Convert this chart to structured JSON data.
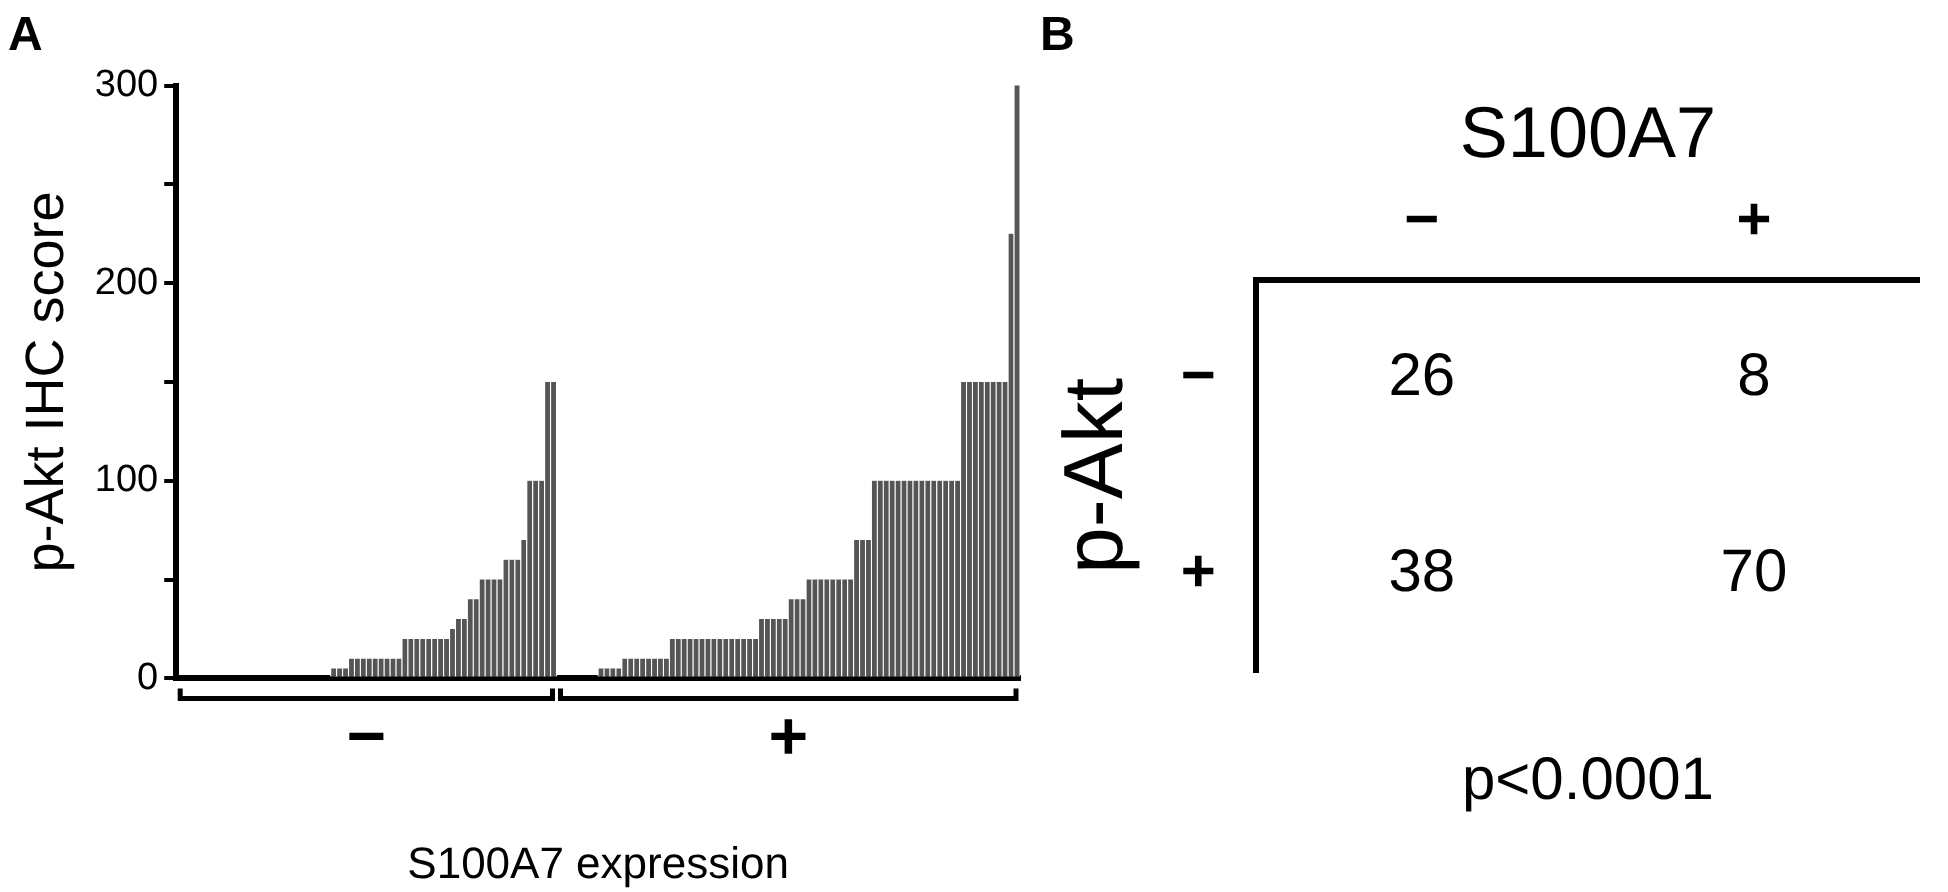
{
  "chart_data": [
    {
      "type": "bar",
      "title": "A",
      "ylabel": "p-Akt IHC score",
      "xlabel": "S100A7 expression",
      "stacked": true,
      "categories": [
        null,
        null,
        null,
        null,
        null,
        null,
        null,
        null,
        null,
        null,
        null,
        null,
        null,
        null,
        null,
        null,
        null,
        null,
        null,
        null,
        null,
        null,
        null,
        null,
        null,
        null,
        null,
        null,
        null,
        null,
        null,
        null,
        null,
        null,
        null,
        null,
        null,
        null,
        null,
        null,
        null,
        null,
        null,
        null,
        null,
        null,
        null,
        null,
        null,
        null,
        null,
        null,
        null,
        null,
        null,
        null,
        null,
        null,
        null,
        null,
        null,
        null,
        null,
        null,
        null,
        null,
        null,
        null,
        null,
        null,
        null,
        null,
        null,
        null,
        null,
        null,
        null,
        null,
        null,
        null,
        null,
        null,
        null,
        null,
        null,
        null,
        null,
        null,
        null,
        null,
        null,
        null,
        null,
        null,
        null,
        null,
        null,
        null,
        null,
        null,
        null,
        null,
        null,
        null,
        null,
        null,
        null,
        null,
        null,
        null,
        null,
        null,
        null,
        null,
        null,
        null,
        null,
        null,
        null,
        null,
        null,
        null,
        null,
        null,
        null,
        null,
        null,
        null,
        null,
        null,
        null,
        null,
        null,
        null,
        null,
        null,
        null,
        null,
        null,
        null,
        null,
        null
      ],
      "series": [
        {
          "name": "−",
          "color": "#555555",
          "values": [
            0,
            0,
            0,
            0,
            0,
            0,
            0,
            0,
            0,
            0,
            0,
            0,
            0,
            0,
            0,
            0,
            0,
            0,
            0,
            0,
            0,
            0,
            0,
            0,
            0,
            0,
            5,
            5,
            5,
            10,
            10,
            10,
            10,
            10,
            10,
            10,
            10,
            10,
            20,
            20,
            20,
            20,
            20,
            20,
            20,
            20,
            25,
            30,
            30,
            40,
            40,
            50,
            50,
            50,
            50,
            60,
            60,
            60,
            70,
            100,
            100,
            100,
            150,
            150,
            null,
            null,
            null,
            null,
            null,
            null,
            null,
            null,
            null,
            null,
            null,
            null,
            null,
            null,
            null,
            null,
            null,
            null,
            null,
            null,
            null,
            null,
            null,
            null,
            null,
            null,
            null,
            null,
            null,
            null,
            null,
            null,
            null,
            null,
            null,
            null,
            null,
            null,
            null,
            null,
            null,
            null,
            null,
            null,
            null,
            null,
            null,
            null,
            null,
            null,
            null,
            null,
            null,
            null,
            null,
            null,
            null,
            null,
            null,
            null,
            null,
            null,
            null,
            null,
            null,
            null,
            null,
            null,
            null,
            null,
            null,
            null,
            null,
            null,
            null,
            null,
            null,
            null
          ]
        },
        {
          "name": "+",
          "color": "#555555",
          "values": [
            null,
            null,
            null,
            null,
            null,
            null,
            null,
            null,
            null,
            null,
            null,
            null,
            null,
            null,
            null,
            null,
            null,
            null,
            null,
            null,
            null,
            null,
            null,
            null,
            null,
            null,
            null,
            null,
            null,
            null,
            null,
            null,
            null,
            null,
            null,
            null,
            null,
            null,
            null,
            null,
            null,
            null,
            null,
            null,
            null,
            null,
            null,
            null,
            null,
            null,
            null,
            null,
            null,
            null,
            null,
            null,
            null,
            null,
            null,
            null,
            null,
            null,
            null,
            null,
            0,
            0,
            0,
            0,
            0,
            0,
            0,
            5,
            5,
            5,
            5,
            10,
            10,
            10,
            10,
            10,
            10,
            10,
            10,
            20,
            20,
            20,
            20,
            20,
            20,
            20,
            20,
            20,
            20,
            20,
            20,
            20,
            20,
            20,
            30,
            30,
            30,
            30,
            30,
            40,
            40,
            40,
            50,
            50,
            50,
            50,
            50,
            50,
            50,
            50,
            70,
            70,
            70,
            100,
            100,
            100,
            100,
            100,
            100,
            100,
            100,
            100,
            100,
            100,
            100,
            100,
            100,
            100,
            150,
            150,
            150,
            150,
            150,
            150,
            150,
            150,
            225,
            300
          ]
        }
      ],
      "ylim": [
        0,
        300
      ],
      "yticks": [
        0,
        {
          "value": 50,
          "label": null
        },
        100,
        {
          "value": 150,
          "label": null
        },
        200,
        {
          "value": 250,
          "label": null
        },
        300
      ]
    },
    {
      "type": "heatmap",
      "title": "B",
      "xlabel": "S100A7",
      "ylabel": "p-Akt",
      "categories": [
        "−",
        "+"
      ],
      "y_categories": [
        "−",
        "+"
      ],
      "cells": [
        [
          26,
          8
        ],
        [
          38,
          70
        ]
      ],
      "data_labels": true,
      "annotations": [
        "p<0.0001"
      ]
    }
  ]
}
